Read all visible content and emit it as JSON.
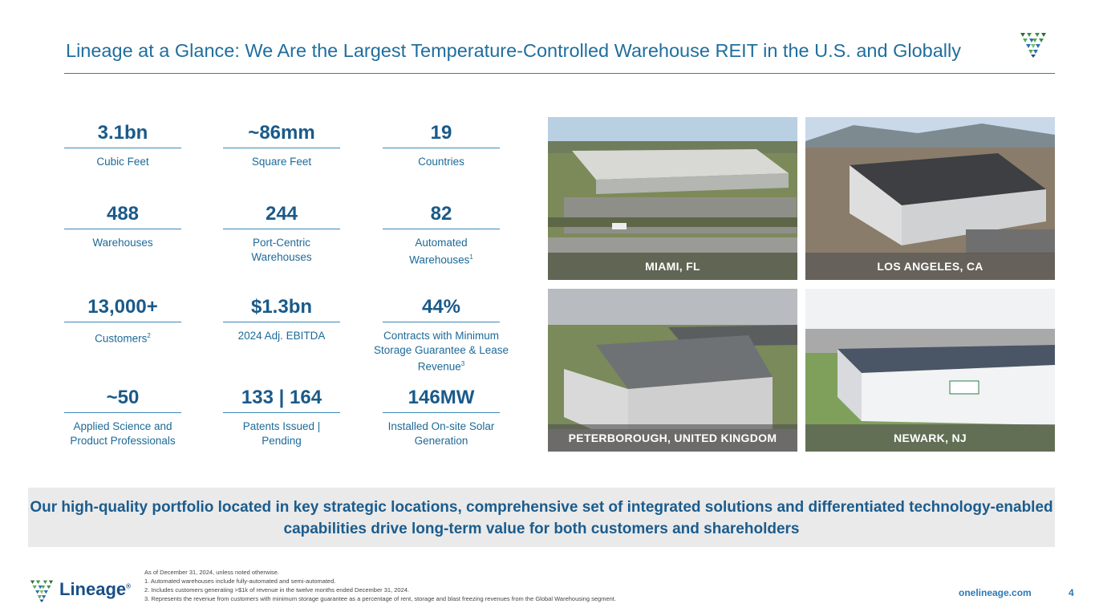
{
  "header": {
    "title": "Lineage at a Glance: We Are the Largest Temperature-Controlled Warehouse REIT in the U.S. and Globally"
  },
  "stats": [
    {
      "value": "3.1bn",
      "label": "Cubic Feet"
    },
    {
      "value": "~86mm",
      "label": "Square Feet"
    },
    {
      "value": "19",
      "label": "Countries"
    },
    {
      "value": "488",
      "label": "Warehouses"
    },
    {
      "value": "244",
      "label": "Port-Centric Warehouses"
    },
    {
      "value": "82",
      "label": "Automated Warehouses",
      "sup": "1"
    },
    {
      "value": "13,000+",
      "label": "Customers",
      "sup": "2"
    },
    {
      "value": "$1.3bn",
      "label": "2024 Adj. EBITDA"
    },
    {
      "value": "44%",
      "label": "Contracts with Minimum Storage Guarantee & Lease Revenue",
      "sup": "3"
    },
    {
      "value": "~50",
      "label": "Applied Science and Product Professionals"
    },
    {
      "value": "133 | 164",
      "label": "Patents Issued | Pending"
    },
    {
      "value": "146MW",
      "label": "Installed On-site Solar Generation"
    }
  ],
  "photos": [
    {
      "caption": "MIAMI, FL"
    },
    {
      "caption": "LOS ANGELES, CA"
    },
    {
      "caption": "PETERBOROUGH, UNITED KINGDOM"
    },
    {
      "caption": "NEWARK, NJ"
    }
  ],
  "banner": {
    "text": "Our high-quality portfolio located in key strategic locations, comprehensive set of integrated solutions and differentiated technology-enabled capabilities drive long-term value for both customers and shareholders"
  },
  "footer": {
    "logo_text": "Lineage",
    "logo_mark": "®",
    "notes": [
      "As of December 31, 2024, unless noted otherwise.",
      "1. Automated warehouses include fully-automated and semi-automated.",
      "2. Includes customers generating >$1k of revenue in the twelve months ended December 31, 2024.",
      "3. Represents the revenue from customers with minimum storage guarantee as a percentage of rent, storage and blast freezing revenues from the Global Warehousing segment."
    ],
    "url": "onelineage.com",
    "page": "4"
  },
  "colors": {
    "accent": "#1f6e9e",
    "dark_blue": "#1a5a8a",
    "green": "#6aa84f",
    "banner_bg": "#eaeaea"
  },
  "icons": {
    "brand": "lineage-logo-icon"
  }
}
